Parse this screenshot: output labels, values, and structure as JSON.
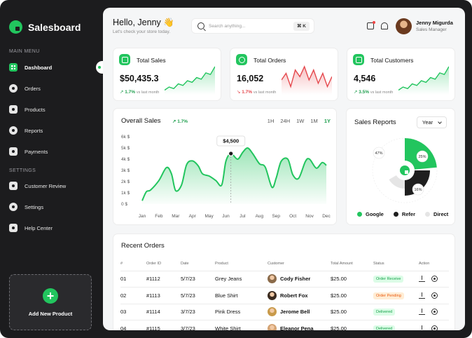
{
  "app": {
    "name": "Salesboard"
  },
  "sidebar": {
    "main_menu_title": "MAIN MENU",
    "main_items": [
      {
        "label": "Dashboard",
        "icon": "dashboard-icon",
        "active": true
      },
      {
        "label": "Orders",
        "icon": "orders-icon"
      },
      {
        "label": "Products",
        "icon": "products-icon"
      },
      {
        "label": "Reports",
        "icon": "reports-icon"
      },
      {
        "label": "Payments",
        "icon": "payments-icon"
      }
    ],
    "settings_title": "SETTINGS",
    "settings_items": [
      {
        "label": "Customer Review",
        "icon": "star-icon"
      },
      {
        "label": "Settings",
        "icon": "gear-icon"
      },
      {
        "label": "Help Center",
        "icon": "help-icon"
      }
    ],
    "add_product": {
      "icon": "plus-icon",
      "label": "Add New Product"
    }
  },
  "header": {
    "greeting": "Hello, Jenny 👋",
    "subtitle": "Let's check your store today.",
    "search": {
      "placeholder": "Search anything...",
      "shortcut": "⌘ K"
    },
    "user": {
      "name": "Jenny Migurda",
      "role": "Sales Manager"
    }
  },
  "stats": [
    {
      "label": "Total Sales",
      "value": "$50,435.3",
      "change": "1.7%",
      "arrow": "↗",
      "direction": "up",
      "comparison": "vs last month",
      "icon": "dollar-icon",
      "sparkline": [
        10,
        14,
        12,
        18,
        16,
        22,
        20,
        26,
        24,
        32,
        30,
        40
      ]
    },
    {
      "label": "Total Orders",
      "value": "16,052",
      "change": "1.7%",
      "arrow": "↘",
      "direction": "down",
      "comparison": "vs last month",
      "icon": "bag-icon",
      "sparkline": [
        22,
        26,
        18,
        28,
        24,
        30,
        22,
        28,
        20,
        26,
        18,
        24
      ]
    },
    {
      "label": "Total Customers",
      "value": "4,546",
      "change": "3.5%",
      "arrow": "↗",
      "direction": "up",
      "comparison": "vs last month",
      "icon": "users-icon",
      "sparkline": [
        10,
        14,
        12,
        18,
        16,
        22,
        20,
        26,
        24,
        32,
        30,
        40
      ]
    }
  ],
  "colors": {
    "accent": "#22c55e",
    "dark": "#1c1c1e",
    "negative": "#e5484d",
    "refer": "#1f1f1f",
    "direct": "#e5e5e5"
  },
  "chart_data": [
    {
      "type": "area",
      "title": "Overall Sales",
      "change": "↗ 1.7%",
      "ranges": [
        "1H",
        "24H",
        "1W",
        "1M",
        "1Y"
      ],
      "active_range": "1Y",
      "categories": [
        "Jan",
        "Feb",
        "Mar",
        "Apr",
        "May",
        "Jun",
        "Jul",
        "Aug",
        "Sep",
        "Oct",
        "Nov",
        "Dec"
      ],
      "y_ticks": [
        "0 $",
        "1k $",
        "2k $",
        "3k $",
        "4k $",
        "5k $",
        "6k $"
      ],
      "ylim": [
        0,
        6000
      ],
      "x": [
        0,
        0.25,
        0.5,
        1,
        1.45,
        1.75,
        2,
        2.35,
        2.65,
        3,
        3.35,
        3.6,
        4,
        4.4,
        4.75,
        5,
        5.3,
        5.7,
        6,
        6.3,
        6.6,
        7,
        7.35,
        7.75,
        8,
        8.3,
        8.7,
        9,
        9.35,
        9.75,
        10,
        10.4,
        10.75,
        11
      ],
      "values": [
        300,
        1100,
        1250,
        2100,
        3250,
        2700,
        1200,
        1700,
        3500,
        3850,
        3400,
        2700,
        2500,
        2100,
        1700,
        3800,
        4500,
        4000,
        4600,
        5000,
        4500,
        3600,
        3300,
        1500,
        2300,
        3800,
        4000,
        2600,
        2300,
        3800,
        4000,
        3200,
        3700,
        3450
      ],
      "highlight": {
        "x": 5.3,
        "value": 4500,
        "label": "$4,500"
      }
    },
    {
      "type": "pie",
      "title": "Sales Reports",
      "filter": "Year",
      "series": [
        {
          "name": "Google",
          "value": 47,
          "label": "47%",
          "color": "#22c55e"
        },
        {
          "name": "Refer",
          "value": 25,
          "label": "25%",
          "color": "#1f1f1f"
        },
        {
          "name": "Direct",
          "value": 16,
          "label": "16%",
          "color": "#e5e5e5"
        }
      ]
    }
  ],
  "orders": {
    "title": "Recent Orders",
    "columns": [
      "#",
      "Order ID",
      "Date",
      "Product",
      "Customer",
      "Total Amount",
      "Status",
      "Action"
    ],
    "rows": [
      {
        "num": "01",
        "id": "#1112",
        "date": "5/7/23",
        "product": "Grey Jeans",
        "customer": "Cody Fisher",
        "amount": "$25.00",
        "status": "Order Receive",
        "status_color": "green",
        "avatar_color": "#8b6b4a"
      },
      {
        "num": "02",
        "id": "#1113",
        "date": "5/7/23",
        "product": "Blue Shirt",
        "customer": "Robert Fox",
        "amount": "$25.00",
        "status": "Order Pending",
        "status_color": "orange",
        "avatar_color": "#3a2a1e"
      },
      {
        "num": "03",
        "id": "#1114",
        "date": "3/7/23",
        "product": "Pink  Dress",
        "customer": "Jerome Bell",
        "amount": "$25.00",
        "status": "Delivered",
        "status_color": "green",
        "avatar_color": "#c89a4a"
      },
      {
        "num": "04",
        "id": "#1115",
        "date": "3/7/23",
        "product": "White Shirt",
        "customer": "Eleanor Pena",
        "amount": "$25.00",
        "status": "Delivered",
        "status_color": "green",
        "avatar_color": "#d4a373"
      }
    ]
  }
}
